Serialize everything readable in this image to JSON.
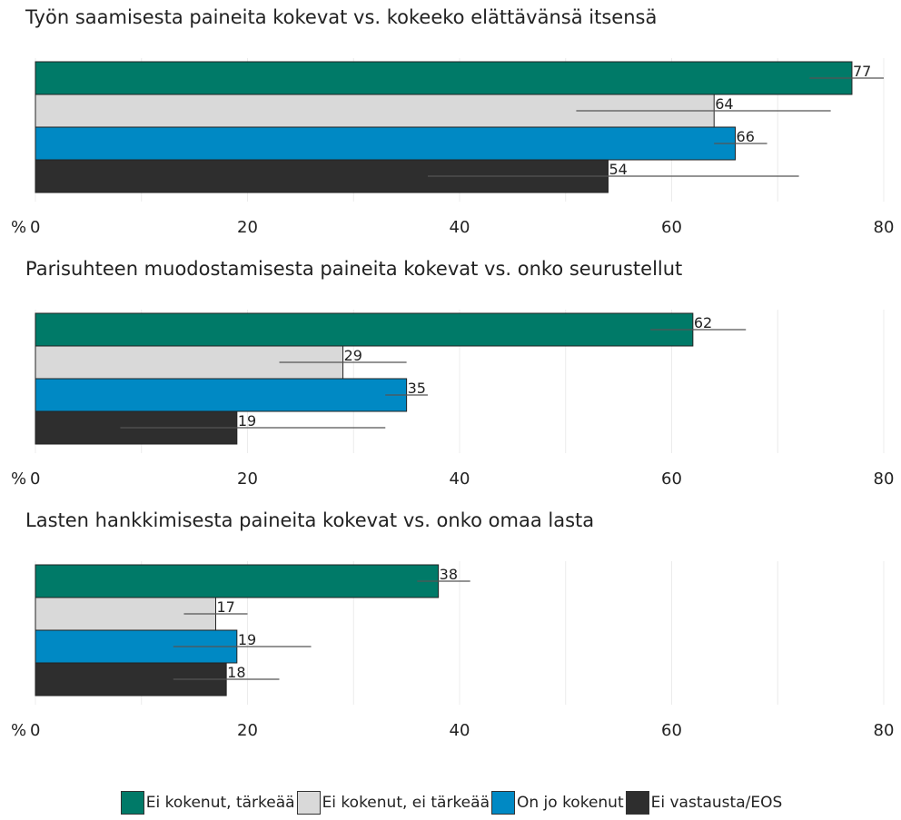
{
  "chart_data": [
    {
      "type": "bar",
      "orientation": "horizontal",
      "title": "Työn saamisesta paineita kokevat vs. kokeeko elättävänsä itsensä",
      "unit_label": "%",
      "xlim": [
        0,
        80
      ],
      "ticks": [
        0,
        20,
        40,
        60,
        80
      ],
      "grid": true,
      "series": [
        {
          "name": "Ei kokenut, tärkeää",
          "value": 77,
          "ci": [
            73,
            80
          ]
        },
        {
          "name": "Ei kokenut, ei tärkeää",
          "value": 64,
          "ci": [
            51,
            75
          ]
        },
        {
          "name": "On jo kokenut",
          "value": 66,
          "ci": [
            64,
            69
          ]
        },
        {
          "name": "Ei vastausta/EOS",
          "value": 54,
          "ci": [
            37,
            72
          ]
        }
      ]
    },
    {
      "type": "bar",
      "orientation": "horizontal",
      "title": "Parisuhteen muodostamisesta paineita kokevat vs. onko seurustellut",
      "unit_label": "%",
      "xlim": [
        0,
        80
      ],
      "ticks": [
        0,
        20,
        40,
        60,
        80
      ],
      "grid": true,
      "series": [
        {
          "name": "Ei kokenut, tärkeää",
          "value": 62,
          "ci": [
            58,
            67
          ]
        },
        {
          "name": "Ei kokenut, ei tärkeää",
          "value": 29,
          "ci": [
            23,
            35
          ]
        },
        {
          "name": "On jo kokenut",
          "value": 35,
          "ci": [
            33,
            37
          ]
        },
        {
          "name": "Ei vastausta/EOS",
          "value": 19,
          "ci": [
            8,
            33
          ]
        }
      ]
    },
    {
      "type": "bar",
      "orientation": "horizontal",
      "title": "Lasten hankkimisesta paineita kokevat vs. onko omaa lasta",
      "unit_label": "%",
      "xlim": [
        0,
        80
      ],
      "ticks": [
        0,
        20,
        40,
        60,
        80
      ],
      "grid": true,
      "series": [
        {
          "name": "Ei kokenut, tärkeää",
          "value": 38,
          "ci": [
            36,
            41
          ]
        },
        {
          "name": "Ei kokenut, ei tärkeää",
          "value": 17,
          "ci": [
            14,
            20
          ]
        },
        {
          "name": "On jo kokenut",
          "value": 19,
          "ci": [
            13,
            26
          ]
        },
        {
          "name": "Ei vastausta/EOS",
          "value": 18,
          "ci": [
            13,
            23
          ]
        }
      ]
    }
  ],
  "legend": [
    {
      "label": "Ei kokenut, tärkeää",
      "color": "#007a68"
    },
    {
      "label": "Ei kokenut, ei tärkeää",
      "color": "#d9d9d9"
    },
    {
      "label": "On jo kokenut",
      "color": "#0089c4"
    },
    {
      "label": "Ei vastausta/EOS",
      "color": "#2e2e2e"
    }
  ]
}
